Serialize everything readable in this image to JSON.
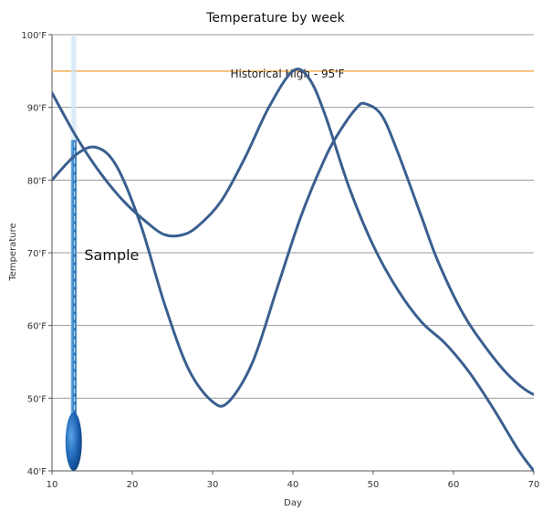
{
  "chart_data": {
    "type": "line",
    "title": "Temperature by week",
    "xlabel": "Day",
    "ylabel": "Temperature",
    "xlim": [
      10,
      70
    ],
    "ylim": [
      40,
      100
    ],
    "x_ticks": [
      "10",
      "20",
      "30",
      "40",
      "50",
      "60",
      "70"
    ],
    "y_ticks": [
      "40'F",
      "50'F",
      "60'F",
      "70'F",
      "80'F",
      "90'F",
      "100'F"
    ],
    "grid": {
      "horizontal": true,
      "vertical": false
    },
    "series": [
      {
        "color": "#3a5f8f",
        "points": [
          [
            10,
            92
          ],
          [
            13,
            86
          ],
          [
            16,
            81
          ],
          [
            19,
            77
          ],
          [
            22,
            74
          ],
          [
            24,
            72.5
          ],
          [
            26,
            72.4
          ],
          [
            28,
            73.5
          ],
          [
            31,
            77
          ],
          [
            34,
            83
          ],
          [
            37,
            90
          ],
          [
            40,
            95
          ],
          [
            42,
            94
          ],
          [
            44,
            89
          ],
          [
            47,
            79
          ],
          [
            50,
            71
          ],
          [
            53,
            65
          ],
          [
            56,
            60.5
          ],
          [
            59,
            57.5
          ],
          [
            62,
            53.5
          ],
          [
            65,
            48.5
          ],
          [
            68,
            43
          ],
          [
            70,
            40
          ]
        ]
      },
      {
        "color": "#3a5f8f",
        "points": [
          [
            10,
            80
          ],
          [
            13,
            83.5
          ],
          [
            15.5,
            84.5
          ],
          [
            18,
            82
          ],
          [
            21,
            74
          ],
          [
            24,
            63
          ],
          [
            27,
            54
          ],
          [
            30,
            49.5
          ],
          [
            32,
            49.5
          ],
          [
            35,
            55
          ],
          [
            38,
            65
          ],
          [
            41,
            75
          ],
          [
            44,
            83
          ],
          [
            46,
            87
          ],
          [
            48,
            90
          ],
          [
            49,
            90.5
          ],
          [
            51,
            89
          ],
          [
            53,
            84
          ],
          [
            56,
            75
          ],
          [
            58,
            69
          ],
          [
            61,
            62
          ],
          [
            64,
            57
          ],
          [
            67,
            53
          ],
          [
            70,
            50.5
          ],
          [
            73,
            50
          ]
        ]
      }
    ],
    "reference_line": {
      "y": 95,
      "label": "Historical High - 95'F",
      "color": "#f6c07a"
    },
    "annotation": {
      "text": "Sample",
      "x": 13,
      "y": 69
    },
    "thermometer": {
      "x": 12.7,
      "level": 85.5,
      "color": "#2b7fc8"
    }
  }
}
